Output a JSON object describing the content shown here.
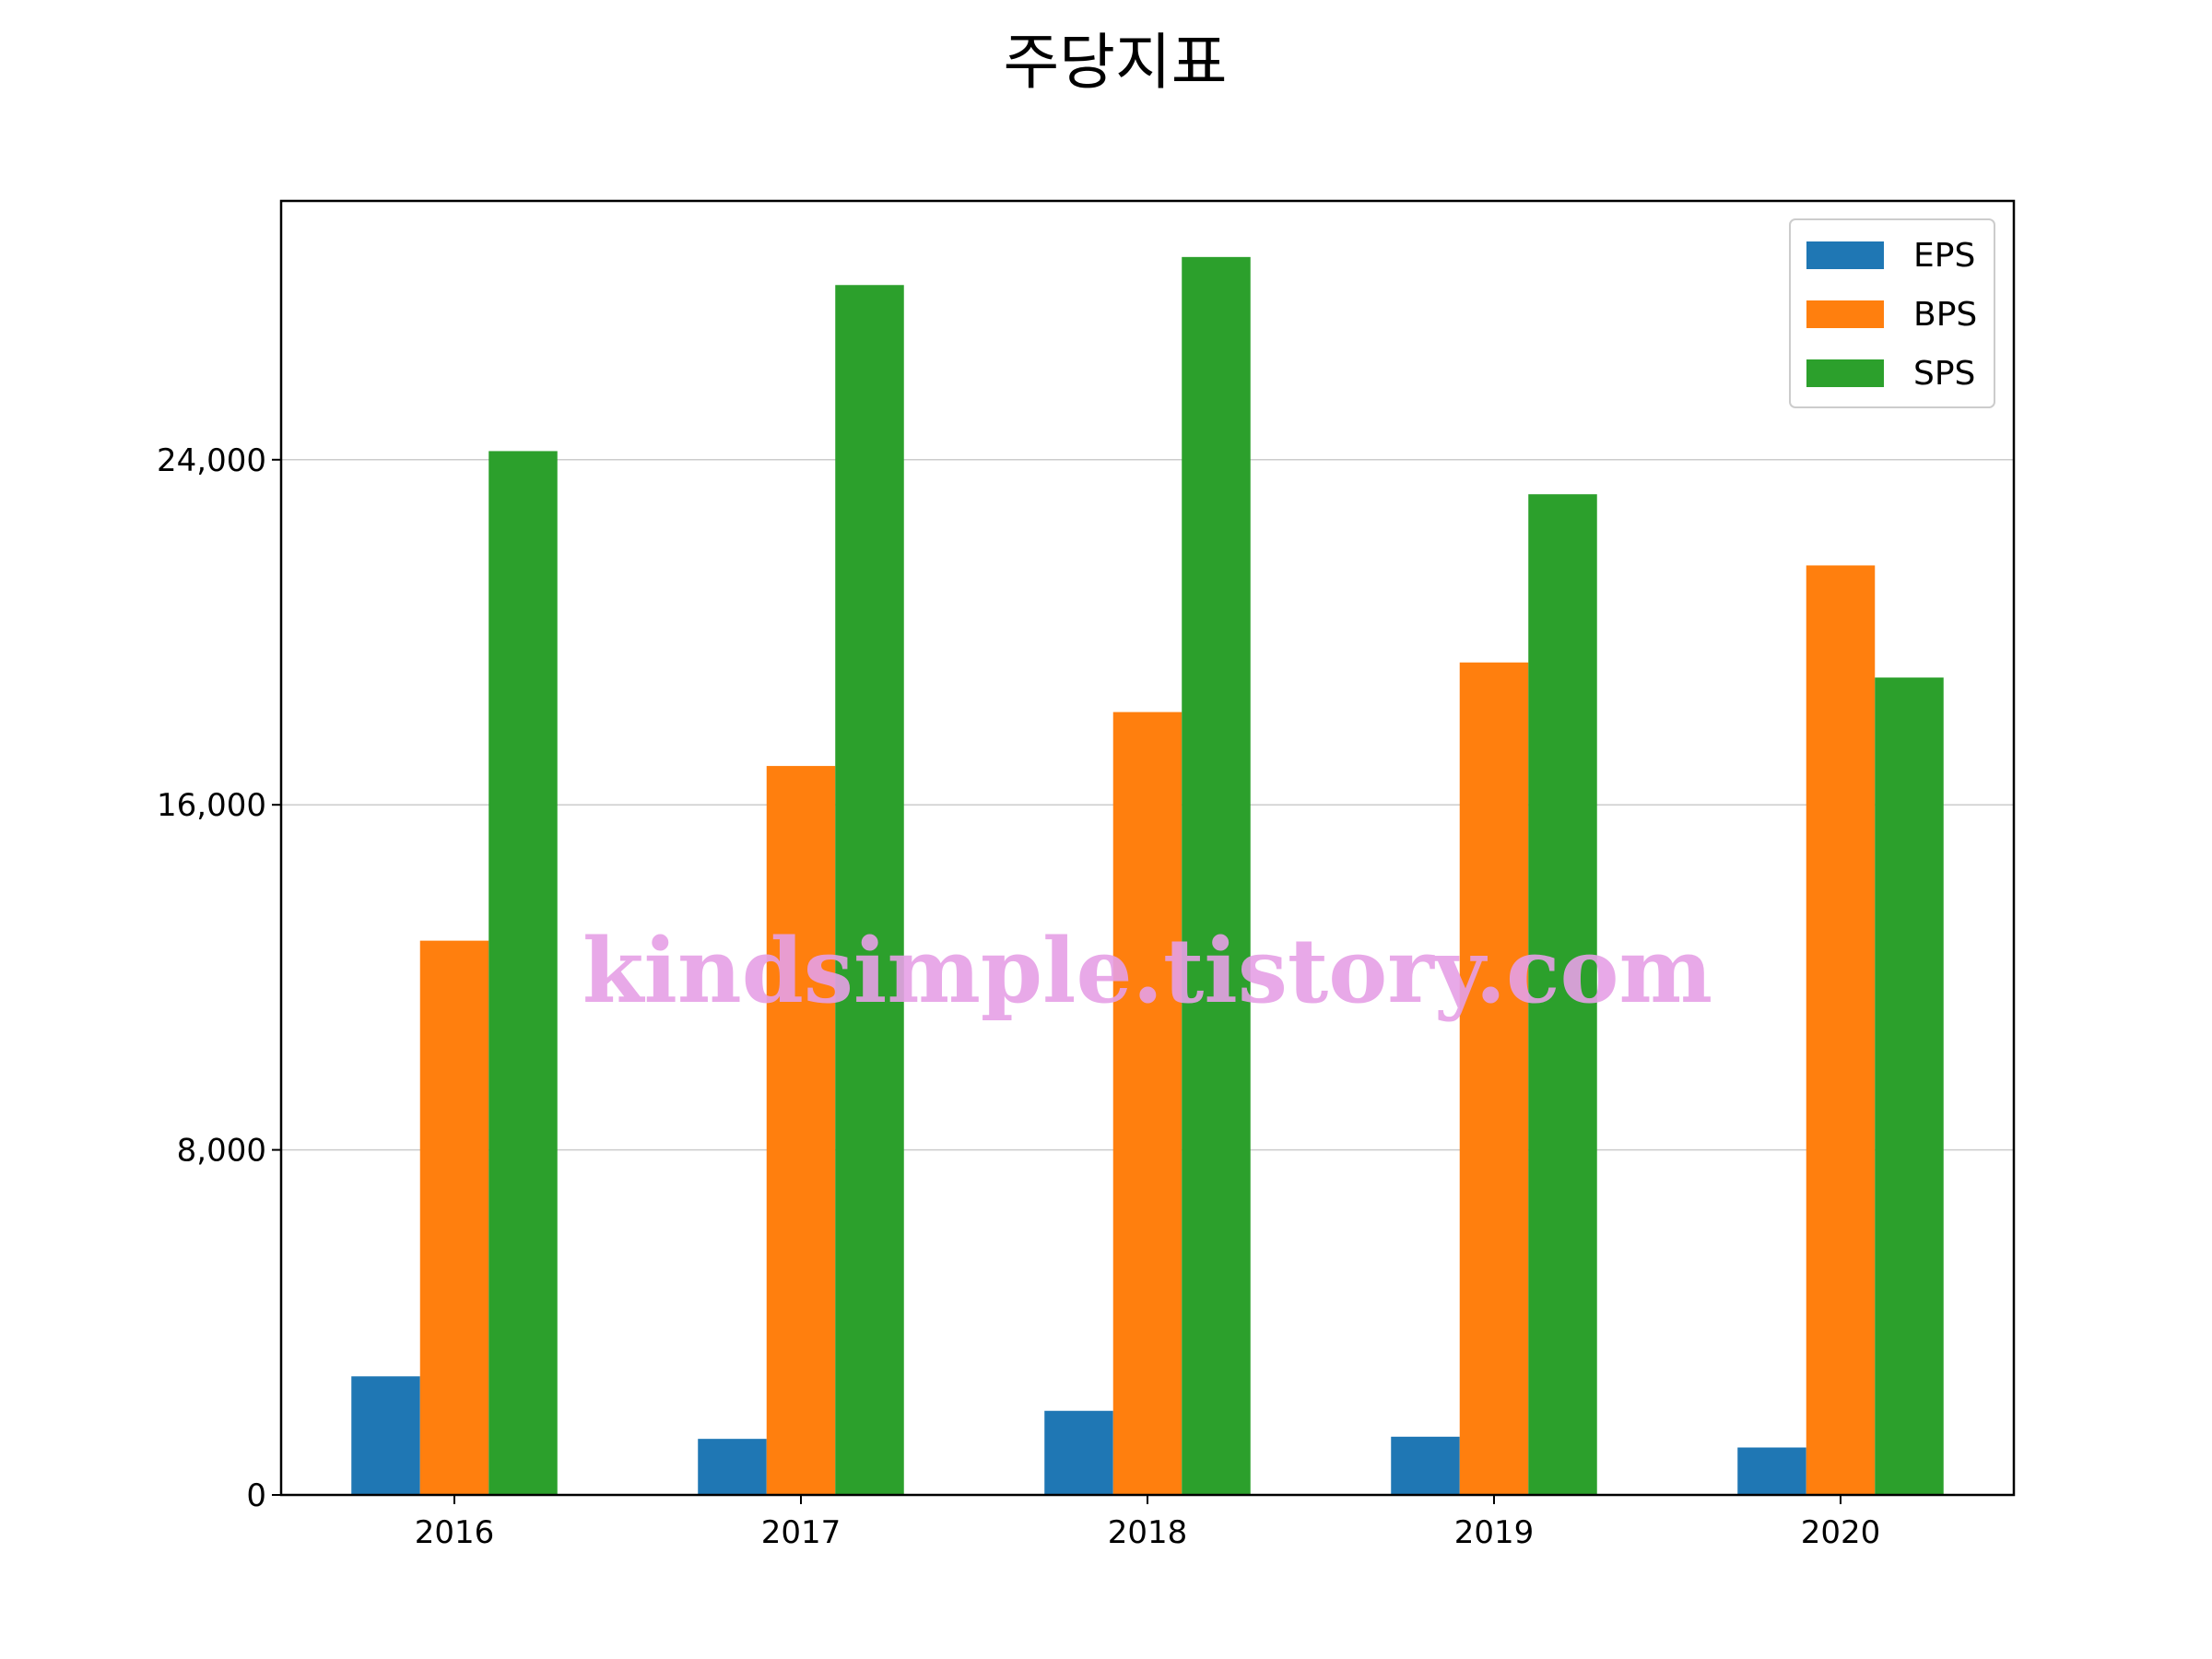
{
  "chart_data": {
    "type": "bar",
    "title": "주당지표",
    "xlabel": "",
    "ylabel": "",
    "categories": [
      "2016",
      "2017",
      "2018",
      "2019",
      "2020"
    ],
    "series": [
      {
        "name": "EPS",
        "color": "#1f77b4",
        "values": [
          2750,
          1300,
          1950,
          1350,
          1100
        ]
      },
      {
        "name": "BPS",
        "color": "#ff7f0e",
        "values": [
          12850,
          16900,
          18150,
          19300,
          21550
        ]
      },
      {
        "name": "SPS",
        "color": "#2ca02c",
        "values": [
          24200,
          28050,
          28700,
          23200,
          18950
        ]
      }
    ],
    "ylim": [
      0,
      30000
    ],
    "yticks": [
      0,
      8000,
      16000,
      24000
    ],
    "ytick_labels": [
      "0",
      "8,000",
      "16,000",
      "24,000"
    ],
    "grid": "y",
    "legend_position": "top-right",
    "watermark": "kindsimple.tistory.com"
  }
}
